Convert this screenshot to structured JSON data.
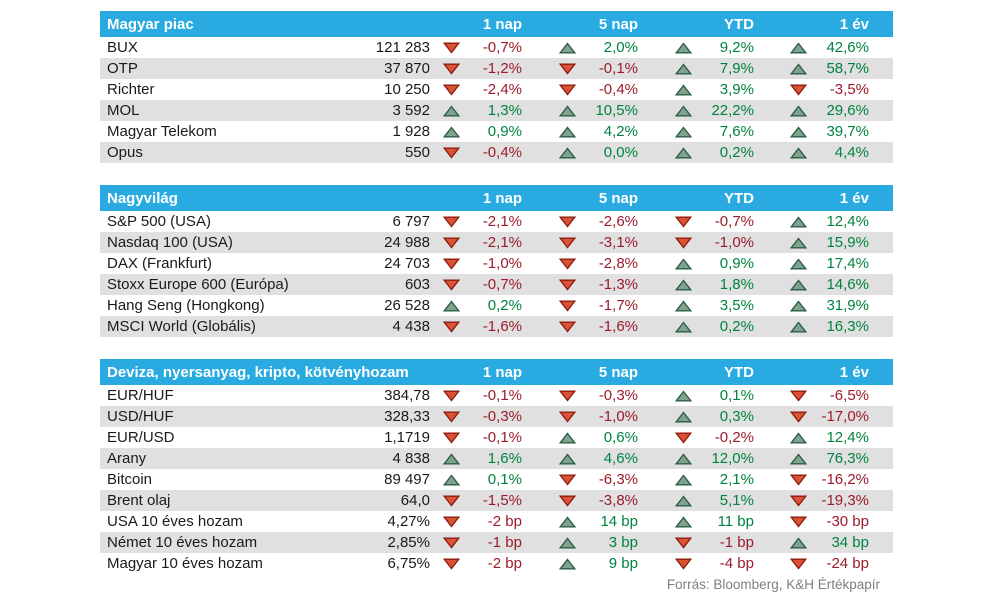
{
  "columns": [
    "1 nap",
    "5 nap",
    "YTD",
    "1 év"
  ],
  "footer": "Forrás: Bloomberg, K&H Értékpapír",
  "colors": {
    "header_bg": "#29ABE2",
    "row_alt": "#E0E0E0",
    "text": "#1A1A1A",
    "positive_text": "#00833F",
    "negative_text": "#9C1B2B",
    "up_triangle_fill": "#7FA38C",
    "up_triangle_border": "#2E5C49",
    "down_triangle_fill": "#DB5335",
    "down_triangle_border": "#8E1E12",
    "footer_text": "#7F7F7F"
  },
  "sections": [
    {
      "title": "Magyar piac",
      "rows": [
        {
          "name": "BUX",
          "value": "121 283",
          "changes": [
            {
              "dir": "down",
              "value": "-0,7%"
            },
            {
              "dir": "up",
              "value": "2,0%"
            },
            {
              "dir": "up",
              "value": "9,2%"
            },
            {
              "dir": "up",
              "value": "42,6%"
            }
          ]
        },
        {
          "name": "OTP",
          "value": "37 870",
          "changes": [
            {
              "dir": "down",
              "value": "-1,2%"
            },
            {
              "dir": "down",
              "value": "-0,1%"
            },
            {
              "dir": "up",
              "value": "7,9%"
            },
            {
              "dir": "up",
              "value": "58,7%"
            }
          ]
        },
        {
          "name": "Richter",
          "value": "10 250",
          "changes": [
            {
              "dir": "down",
              "value": "-2,4%"
            },
            {
              "dir": "down",
              "value": "-0,4%"
            },
            {
              "dir": "up",
              "value": "3,9%"
            },
            {
              "dir": "down",
              "value": "-3,5%"
            }
          ]
        },
        {
          "name": "MOL",
          "value": "3 592",
          "changes": [
            {
              "dir": "up",
              "value": "1,3%"
            },
            {
              "dir": "up",
              "value": "10,5%"
            },
            {
              "dir": "up",
              "value": "22,2%"
            },
            {
              "dir": "up",
              "value": "29,6%"
            }
          ]
        },
        {
          "name": "Magyar Telekom",
          "value": "1 928",
          "changes": [
            {
              "dir": "up",
              "value": "0,9%"
            },
            {
              "dir": "up",
              "value": "4,2%"
            },
            {
              "dir": "up",
              "value": "7,6%"
            },
            {
              "dir": "up",
              "value": "39,7%"
            }
          ]
        },
        {
          "name": "Opus",
          "value": "550",
          "changes": [
            {
              "dir": "down",
              "value": "-0,4%"
            },
            {
              "dir": "up",
              "value": "0,0%"
            },
            {
              "dir": "up",
              "value": "0,2%"
            },
            {
              "dir": "up",
              "value": "4,4%"
            }
          ]
        }
      ]
    },
    {
      "title": "Nagyvilág",
      "rows": [
        {
          "name": "S&P 500 (USA)",
          "value": "6 797",
          "changes": [
            {
              "dir": "down",
              "value": "-2,1%"
            },
            {
              "dir": "down",
              "value": "-2,6%"
            },
            {
              "dir": "down",
              "value": "-0,7%"
            },
            {
              "dir": "up",
              "value": "12,4%"
            }
          ]
        },
        {
          "name": "Nasdaq 100 (USA)",
          "value": "24 988",
          "changes": [
            {
              "dir": "down",
              "value": "-2,1%"
            },
            {
              "dir": "down",
              "value": "-3,1%"
            },
            {
              "dir": "down",
              "value": "-1,0%"
            },
            {
              "dir": "up",
              "value": "15,9%"
            }
          ]
        },
        {
          "name": "DAX (Frankfurt)",
          "value": "24 703",
          "changes": [
            {
              "dir": "down",
              "value": "-1,0%"
            },
            {
              "dir": "down",
              "value": "-2,8%"
            },
            {
              "dir": "up",
              "value": "0,9%"
            },
            {
              "dir": "up",
              "value": "17,4%"
            }
          ]
        },
        {
          "name": "Stoxx Europe 600 (Európa)",
          "value": "603",
          "changes": [
            {
              "dir": "down",
              "value": "-0,7%"
            },
            {
              "dir": "down",
              "value": "-1,3%"
            },
            {
              "dir": "up",
              "value": "1,8%"
            },
            {
              "dir": "up",
              "value": "14,6%"
            }
          ]
        },
        {
          "name": "Hang Seng (Hongkong)",
          "value": "26 528",
          "changes": [
            {
              "dir": "up",
              "value": "0,2%"
            },
            {
              "dir": "down",
              "value": "-1,7%"
            },
            {
              "dir": "up",
              "value": "3,5%"
            },
            {
              "dir": "up",
              "value": "31,9%"
            }
          ]
        },
        {
          "name": "MSCI World (Globális)",
          "value": "4 438",
          "changes": [
            {
              "dir": "down",
              "value": "-1,6%"
            },
            {
              "dir": "down",
              "value": "-1,6%"
            },
            {
              "dir": "up",
              "value": "0,2%"
            },
            {
              "dir": "up",
              "value": "16,3%"
            }
          ]
        }
      ]
    },
    {
      "title": "Deviza, nyersanyag, kripto, kötvényhozam",
      "rows": [
        {
          "name": "EUR/HUF",
          "value": "384,78",
          "changes": [
            {
              "dir": "down",
              "value": "-0,1%"
            },
            {
              "dir": "down",
              "value": "-0,3%"
            },
            {
              "dir": "up",
              "value": "0,1%"
            },
            {
              "dir": "down",
              "value": "-6,5%"
            }
          ]
        },
        {
          "name": "USD/HUF",
          "value": "328,33",
          "changes": [
            {
              "dir": "down",
              "value": "-0,3%"
            },
            {
              "dir": "down",
              "value": "-1,0%"
            },
            {
              "dir": "up",
              "value": "0,3%"
            },
            {
              "dir": "down",
              "value": "-17,0%"
            }
          ]
        },
        {
          "name": "EUR/USD",
          "value": "1,1719",
          "changes": [
            {
              "dir": "down",
              "value": "-0,1%"
            },
            {
              "dir": "up",
              "value": "0,6%"
            },
            {
              "dir": "down",
              "value": "-0,2%"
            },
            {
              "dir": "up",
              "value": "12,4%"
            }
          ]
        },
        {
          "name": "Arany",
          "value": "4 838",
          "changes": [
            {
              "dir": "up",
              "value": "1,6%"
            },
            {
              "dir": "up",
              "value": "4,6%"
            },
            {
              "dir": "up",
              "value": "12,0%"
            },
            {
              "dir": "up",
              "value": "76,3%"
            }
          ]
        },
        {
          "name": "Bitcoin",
          "value": "89 497",
          "changes": [
            {
              "dir": "up",
              "value": "0,1%"
            },
            {
              "dir": "down",
              "value": "-6,3%"
            },
            {
              "dir": "up",
              "value": "2,1%"
            },
            {
              "dir": "down",
              "value": "-16,2%"
            }
          ]
        },
        {
          "name": "Brent olaj",
          "value": "64,0",
          "changes": [
            {
              "dir": "down",
              "value": "-1,5%"
            },
            {
              "dir": "down",
              "value": "-3,8%"
            },
            {
              "dir": "up",
              "value": "5,1%"
            },
            {
              "dir": "down",
              "value": "-19,3%"
            }
          ]
        },
        {
          "name": "USA 10 éves hozam",
          "value": "4,27%",
          "changes": [
            {
              "dir": "down",
              "value": "-2 bp"
            },
            {
              "dir": "up",
              "value": "14 bp"
            },
            {
              "dir": "up",
              "value": "11 bp"
            },
            {
              "dir": "down",
              "value": "-30 bp"
            }
          ]
        },
        {
          "name": "Német 10 éves hozam",
          "value": "2,85%",
          "changes": [
            {
              "dir": "down",
              "value": "-1 bp"
            },
            {
              "dir": "up",
              "value": "3 bp"
            },
            {
              "dir": "down",
              "value": "-1 bp"
            },
            {
              "dir": "up",
              "value": "34 bp"
            }
          ]
        },
        {
          "name": "Magyar 10 éves hozam",
          "value": "6,75%",
          "changes": [
            {
              "dir": "down",
              "value": "-2 bp"
            },
            {
              "dir": "up",
              "value": "9 bp"
            },
            {
              "dir": "down",
              "value": "-4 bp"
            },
            {
              "dir": "down",
              "value": "-24 bp"
            }
          ]
        }
      ]
    }
  ]
}
